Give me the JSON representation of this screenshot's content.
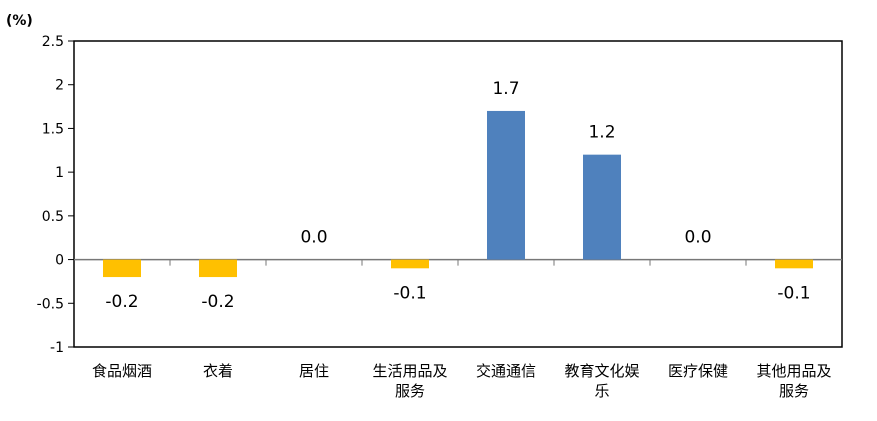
{
  "chart_data": {
    "type": "bar",
    "unit_label": "(%)",
    "categories": [
      [
        "食品烟酒"
      ],
      [
        "衣着"
      ],
      [
        "居住"
      ],
      [
        "生活用品及",
        "服务"
      ],
      [
        "交通通信"
      ],
      [
        "教育文化娱",
        "乐"
      ],
      [
        "医疗保健"
      ],
      [
        "其他用品及",
        "服务"
      ]
    ],
    "values": [
      -0.2,
      -0.2,
      0.0,
      -0.1,
      1.7,
      1.2,
      0.0,
      -0.1
    ],
    "data_labels": [
      "-0.2",
      "-0.2",
      "0.0",
      "-0.1",
      "1.7",
      "1.2",
      "0.0",
      "-0.1"
    ],
    "ylim": [
      -1,
      2.5
    ],
    "yticks": [
      "2.5",
      "2",
      "1.5",
      "1",
      "0.5",
      "0",
      "-0.5",
      "-1"
    ],
    "grid": false,
    "colors": {
      "positive": "#4F81BD",
      "negative": "#FFC000"
    }
  }
}
